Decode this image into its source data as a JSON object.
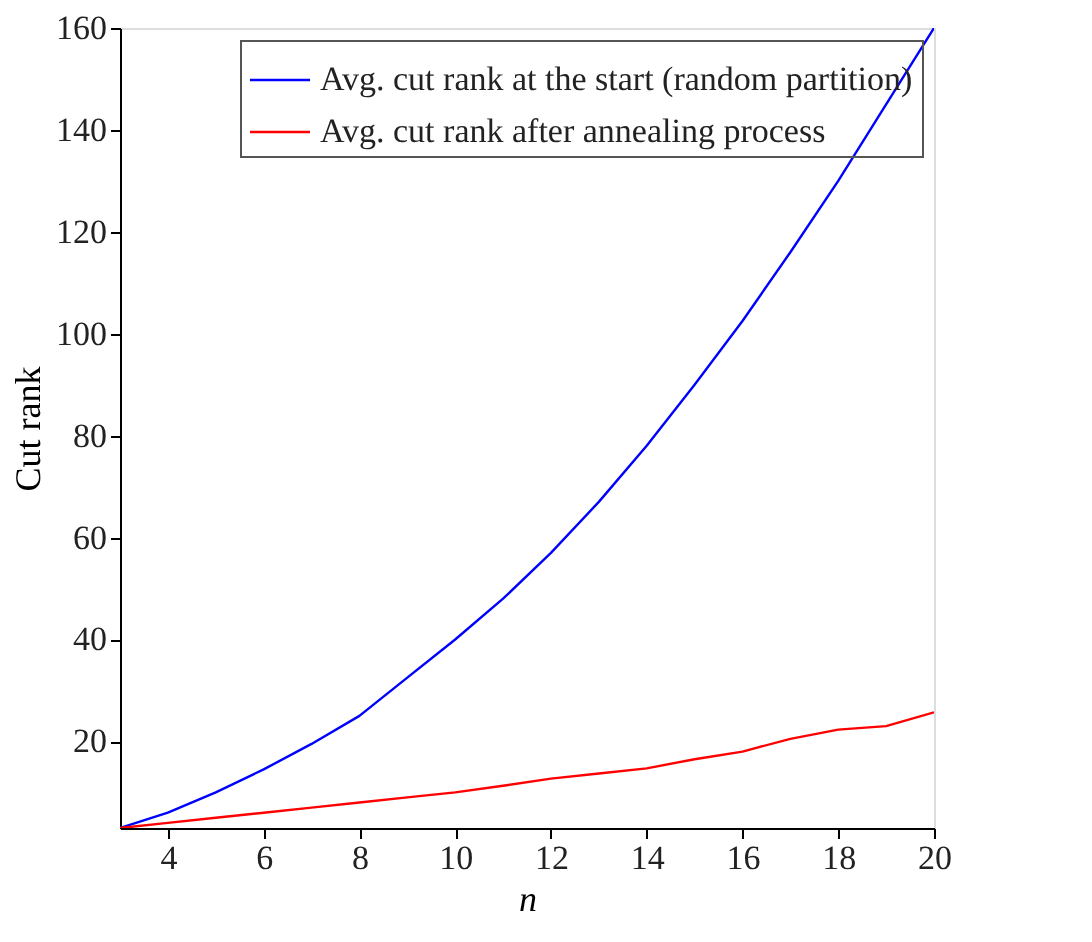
{
  "chart_data": {
    "type": "line",
    "xlabel": "n",
    "ylabel": "Cut rank",
    "x": [
      3,
      4,
      5,
      6,
      7,
      8,
      9,
      10,
      11,
      12,
      13,
      14,
      15,
      16,
      17,
      18,
      19,
      20
    ],
    "series": [
      {
        "name": "Avg. cut rank at the start (random partition)",
        "color": "#0000ff",
        "values": [
          3,
          6,
          10,
          14.5,
          19.5,
          25,
          32.5,
          40,
          48,
          57,
          67,
          78,
          90,
          102.5,
          116,
          130,
          145,
          160
        ]
      },
      {
        "name": "Avg. cut rank after annealing process",
        "color": "#ff0000",
        "values": [
          3,
          4,
          5,
          6,
          7,
          8,
          9,
          10,
          11.3,
          12.7,
          13.7,
          14.7,
          16.5,
          18,
          20.5,
          22.3,
          23,
          25.7
        ]
      }
    ],
    "xlim": [
      3,
      20
    ],
    "ylim": [
      3,
      160
    ],
    "xticks": [
      4,
      6,
      8,
      10,
      12,
      14,
      16,
      18,
      20
    ],
    "yticks": [
      20,
      40,
      60,
      80,
      100,
      120,
      140,
      160
    ],
    "grid": false,
    "legend": "top right",
    "marker": "none",
    "line_style": "solid"
  }
}
